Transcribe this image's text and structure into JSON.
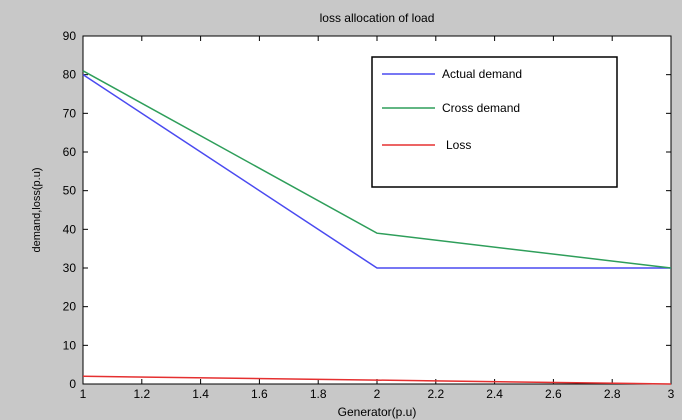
{
  "chart_data": {
    "type": "line",
    "title": "loss allocation of load",
    "xlabel": "Generator(p.u)",
    "ylabel": "demand,loss(p.u)",
    "xlim": [
      1,
      3
    ],
    "ylim": [
      0,
      90
    ],
    "xticks": [
      1,
      1.2,
      1.4,
      1.6,
      1.8,
      2,
      2.2,
      2.4,
      2.6,
      2.8,
      3
    ],
    "xtick_labels": [
      "1",
      "1.2",
      "1.4",
      "1.6",
      "1.8",
      "2",
      "2.2",
      "2.4",
      "2.6",
      "2.8",
      "3"
    ],
    "yticks": [
      0,
      10,
      20,
      30,
      40,
      50,
      60,
      70,
      80,
      90
    ],
    "ytick_labels": [
      "0",
      "10",
      "20",
      "30",
      "40",
      "50",
      "60",
      "70",
      "80",
      "90"
    ],
    "grid": false,
    "legend_position": "top-right",
    "x": [
      1,
      2,
      3
    ],
    "series": [
      {
        "name": "Actual demand",
        "color": "#4a4af0",
        "values": [
          80,
          30,
          30
        ]
      },
      {
        "name": "Cross demand",
        "color": "#2e9e5a",
        "values": [
          81,
          39,
          30
        ]
      },
      {
        "name": "Loss",
        "color": "#e53030",
        "values": [
          2,
          1,
          0
        ]
      }
    ]
  }
}
